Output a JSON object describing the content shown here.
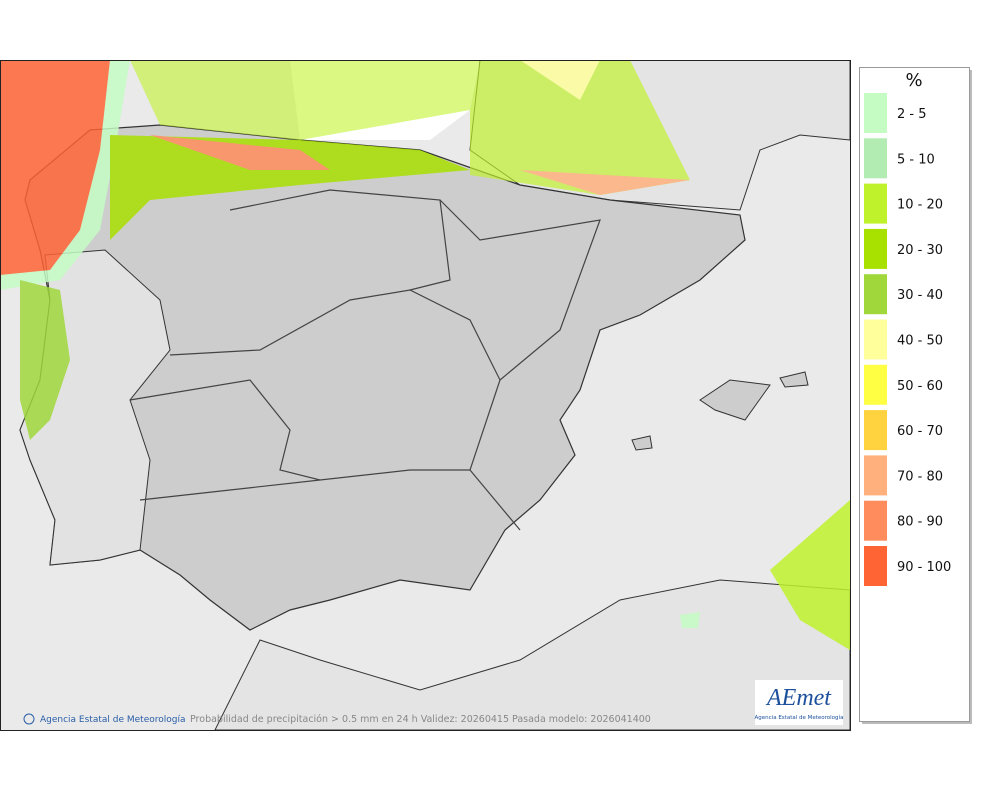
{
  "legend": {
    "title": "%",
    "items": [
      {
        "label": "2 - 5",
        "color": "#c4fcc4"
      },
      {
        "label": "5 - 10",
        "color": "#b2ecb2"
      },
      {
        "label": "10 - 20",
        "color": "#c0f22c"
      },
      {
        "label": "20 - 30",
        "color": "#a8e000"
      },
      {
        "label": "30 - 40",
        "color": "#a0d83c"
      },
      {
        "label": "40 - 50",
        "color": "#ffff9c"
      },
      {
        "label": "50 - 60",
        "color": "#ffff44"
      },
      {
        "label": "60 - 70",
        "color": "#ffd240"
      },
      {
        "label": "70 - 80",
        "color": "#ffb07c"
      },
      {
        "label": "80 - 90",
        "color": "#ff8c5c"
      },
      {
        "label": "90 - 100",
        "color": "#ff6434"
      }
    ]
  },
  "footer": {
    "credit": "Agencia Estatal de Meteorología",
    "caption": "Probabilidad de precipitación > 0.5 mm en 24 h Validez: 20260415 Pasada modelo: 2026041400"
  },
  "logo": {
    "text": "AEmet",
    "subtitle": "Agencia Estatal de Meteorología"
  }
}
